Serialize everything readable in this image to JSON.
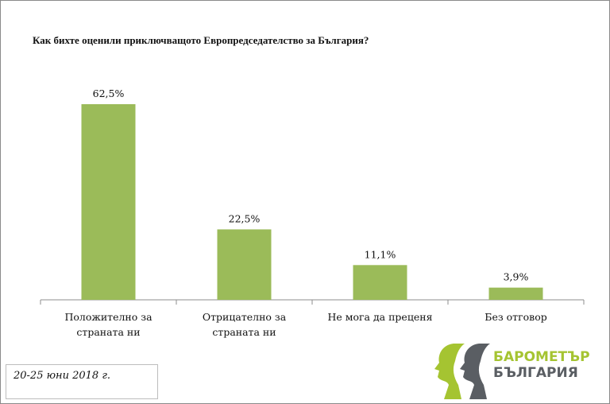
{
  "chart_data": {
    "type": "bar",
    "title": "Как бихте оценили приключващото Европредседателство за България?",
    "categories": [
      [
        "Положително за",
        "страната ни"
      ],
      [
        "Отрицателно за",
        "страната ни"
      ],
      [
        "Не мога да преценя"
      ],
      [
        "Без отговор"
      ]
    ],
    "values": [
      62.5,
      22.5,
      11.1,
      3.9
    ],
    "data_labels": [
      "62,5%",
      "22,5%",
      "11,1%",
      "3,9%"
    ],
    "ylim": [
      0,
      70
    ],
    "grid": false,
    "bar_color": "#9bbb59"
  },
  "footnote": "20-25 юни 2018 г.",
  "logo": {
    "line1": "БАРОМЕТЪР",
    "line2": "БЪЛГАРИЯ",
    "colors": [
      "#a5c431",
      "#5a5e63"
    ]
  }
}
